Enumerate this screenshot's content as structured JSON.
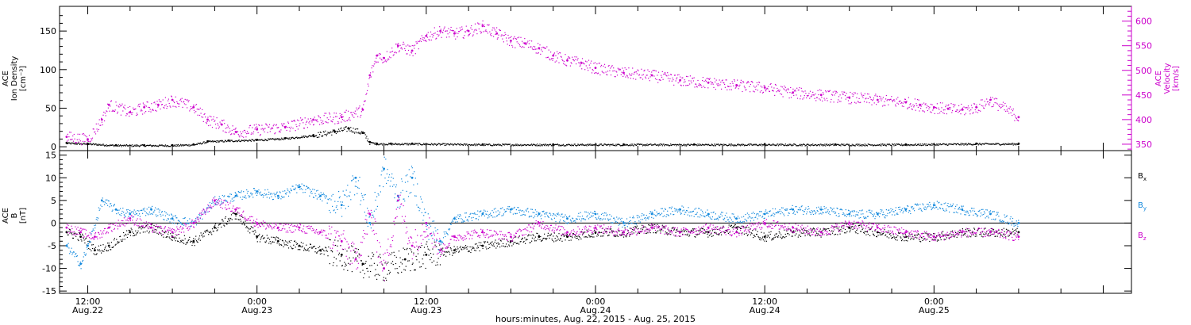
{
  "figure": {
    "xlabel": "hours:minutes, Aug. 22, 2015 - Aug. 25, 2015",
    "x_ticks": [
      {
        "hour": 12,
        "label": "12:00",
        "date": "Aug.22"
      },
      {
        "hour": 24,
        "label": "0:00",
        "date": "Aug.23"
      },
      {
        "hour": 36,
        "label": "12:00",
        "date": "Aug.23"
      },
      {
        "hour": 48,
        "label": "0:00",
        "date": "Aug.24"
      },
      {
        "hour": 60,
        "label": "12:00",
        "date": "Aug.24"
      },
      {
        "hour": 72,
        "label": "0:00",
        "date": "Aug.25"
      }
    ]
  },
  "chart_data": [
    {
      "type": "scatter",
      "title": "",
      "xlabel": "hours:minutes, Aug. 22, 2015 - Aug. 25, 2015",
      "xlim_hours": [
        10,
        86
      ],
      "x_units": "hours from Aug. 22 0:00",
      "left_axis": {
        "label_lines": [
          "ACE",
          "Ion Density",
          "[cm⁻³]"
        ],
        "ylim": [
          -5,
          182
        ],
        "ticks": [
          0,
          50,
          100,
          150
        ],
        "color": "#000000"
      },
      "right_axis": {
        "label_lines": [
          "ACE",
          "Velocity",
          "[km/s]"
        ],
        "ylim": [
          337,
          630
        ],
        "ticks": [
          350,
          400,
          450,
          500,
          550,
          600
        ],
        "color": "#cc00cc"
      },
      "series": [
        {
          "axis": "left",
          "color": "#000000",
          "x": [
            10.5,
            12,
            14,
            16,
            18,
            19.5,
            20.5,
            22,
            24,
            26,
            28,
            29.5,
            30.5,
            31.5,
            32,
            32.5,
            33.5,
            35,
            40,
            45,
            50,
            55,
            60,
            65,
            70,
            75,
            78
          ],
          "y": [
            5,
            4,
            2,
            2,
            2,
            3,
            7,
            8,
            9,
            11,
            15,
            20,
            24,
            18,
            6,
            4,
            4,
            4,
            3,
            3,
            3,
            3,
            3,
            3,
            3,
            4,
            4
          ]
        },
        {
          "axis": "right",
          "color": "#cc00cc",
          "x": [
            10.5,
            12,
            13,
            13.5,
            15,
            16,
            17,
            18,
            19.5,
            20.5,
            21.5,
            22.5,
            24,
            26,
            28,
            30,
            31.5,
            32,
            32.5,
            33,
            34,
            35,
            36,
            37,
            38,
            39,
            40,
            41,
            42,
            43,
            44,
            45,
            46,
            47,
            48,
            50,
            52,
            54,
            56,
            58,
            60,
            62,
            64,
            66,
            68,
            70,
            71,
            72,
            73,
            74,
            75,
            76,
            78
          ],
          "y": [
            365,
            360,
            400,
            430,
            415,
            425,
            430,
            440,
            425,
            400,
            390,
            375,
            380,
            385,
            400,
            405,
            420,
            490,
            530,
            525,
            550,
            540,
            570,
            580,
            575,
            580,
            590,
            575,
            560,
            555,
            545,
            530,
            520,
            515,
            505,
            495,
            490,
            480,
            475,
            470,
            465,
            455,
            450,
            445,
            440,
            435,
            430,
            425,
            422,
            420,
            425,
            440,
            405
          ]
        }
      ]
    },
    {
      "type": "scatter",
      "title": "",
      "xlabel": "hours:minutes, Aug. 22, 2015 - Aug. 25, 2015",
      "xlim_hours": [
        10,
        86
      ],
      "y_axis": {
        "label_lines": [
          "ACE",
          "B",
          "[nT]"
        ],
        "ylim": [
          -15.5,
          16
        ],
        "ticks": [
          -15,
          -10,
          -5,
          0,
          5,
          10,
          15
        ]
      },
      "legend_placement": "right",
      "series": [
        {
          "name": "Bx",
          "color": "#000000",
          "x": [
            10.5,
            11.5,
            12.5,
            13.5,
            15,
            16.5,
            18,
            19.5,
            21,
            22.5,
            24,
            25.5,
            27,
            28.5,
            30,
            31.5,
            33,
            34.5,
            36,
            38,
            40,
            42,
            44,
            46,
            48,
            50,
            52,
            54,
            56,
            58,
            60,
            62,
            64,
            66,
            68,
            70,
            72,
            74,
            76,
            78
          ],
          "y": [
            -2,
            -3,
            -6,
            -5,
            -2,
            -1,
            -3,
            -4,
            -1,
            2,
            -3,
            -4,
            -5,
            -6,
            -7,
            -9,
            -10,
            -8,
            -7,
            -6,
            -5,
            -4,
            -3,
            -3,
            -2,
            -2,
            -1,
            -2,
            -2,
            -1,
            -3,
            -2,
            -2,
            -1,
            -2,
            -3,
            -3,
            -2,
            -2,
            -2
          ]
        },
        {
          "name": "By",
          "color": "#1188dd",
          "x": [
            10.5,
            11.5,
            12,
            13,
            14,
            15,
            16.5,
            18,
            19.5,
            21,
            22.5,
            24,
            25.5,
            27,
            28.5,
            30,
            31,
            32,
            33,
            34,
            35,
            36,
            37,
            38,
            40,
            42,
            44,
            46,
            48,
            50,
            52,
            54,
            56,
            58,
            60,
            62,
            64,
            66,
            68,
            70,
            72,
            74,
            76,
            78
          ],
          "y": [
            -5,
            -9,
            -5,
            5,
            3,
            2,
            3,
            1,
            0,
            5,
            6,
            7,
            6,
            8,
            6,
            4,
            10,
            0,
            12,
            6,
            10,
            0,
            -4,
            1,
            2,
            3,
            2,
            1,
            2,
            0,
            2,
            3,
            2,
            1,
            2,
            3,
            3,
            2,
            2,
            3,
            4,
            3,
            2,
            0
          ]
        },
        {
          "name": "Bz",
          "color": "#cc00cc",
          "x": [
            10.5,
            11.5,
            12.5,
            13.5,
            15,
            16.5,
            18,
            19.5,
            21,
            22.5,
            24,
            25.5,
            27,
            28.5,
            30,
            31,
            32,
            33,
            34,
            35,
            36,
            37,
            38,
            40,
            42,
            44,
            46,
            48,
            50,
            52,
            54,
            56,
            58,
            60,
            62,
            64,
            66,
            68,
            70,
            72,
            74,
            76,
            78
          ],
          "y": [
            -1,
            -2,
            -3,
            -1,
            1,
            -1,
            -2,
            0,
            5,
            3,
            0,
            -1,
            -1,
            -2,
            -4,
            -8,
            2,
            -10,
            5,
            -5,
            0,
            -6,
            -3,
            -2,
            -3,
            0,
            -2,
            -1,
            -2,
            -1,
            -2,
            -1,
            -2,
            0,
            -1,
            -2,
            0,
            -1,
            -2,
            -3,
            -2,
            -2,
            -3
          ]
        }
      ]
    }
  ]
}
